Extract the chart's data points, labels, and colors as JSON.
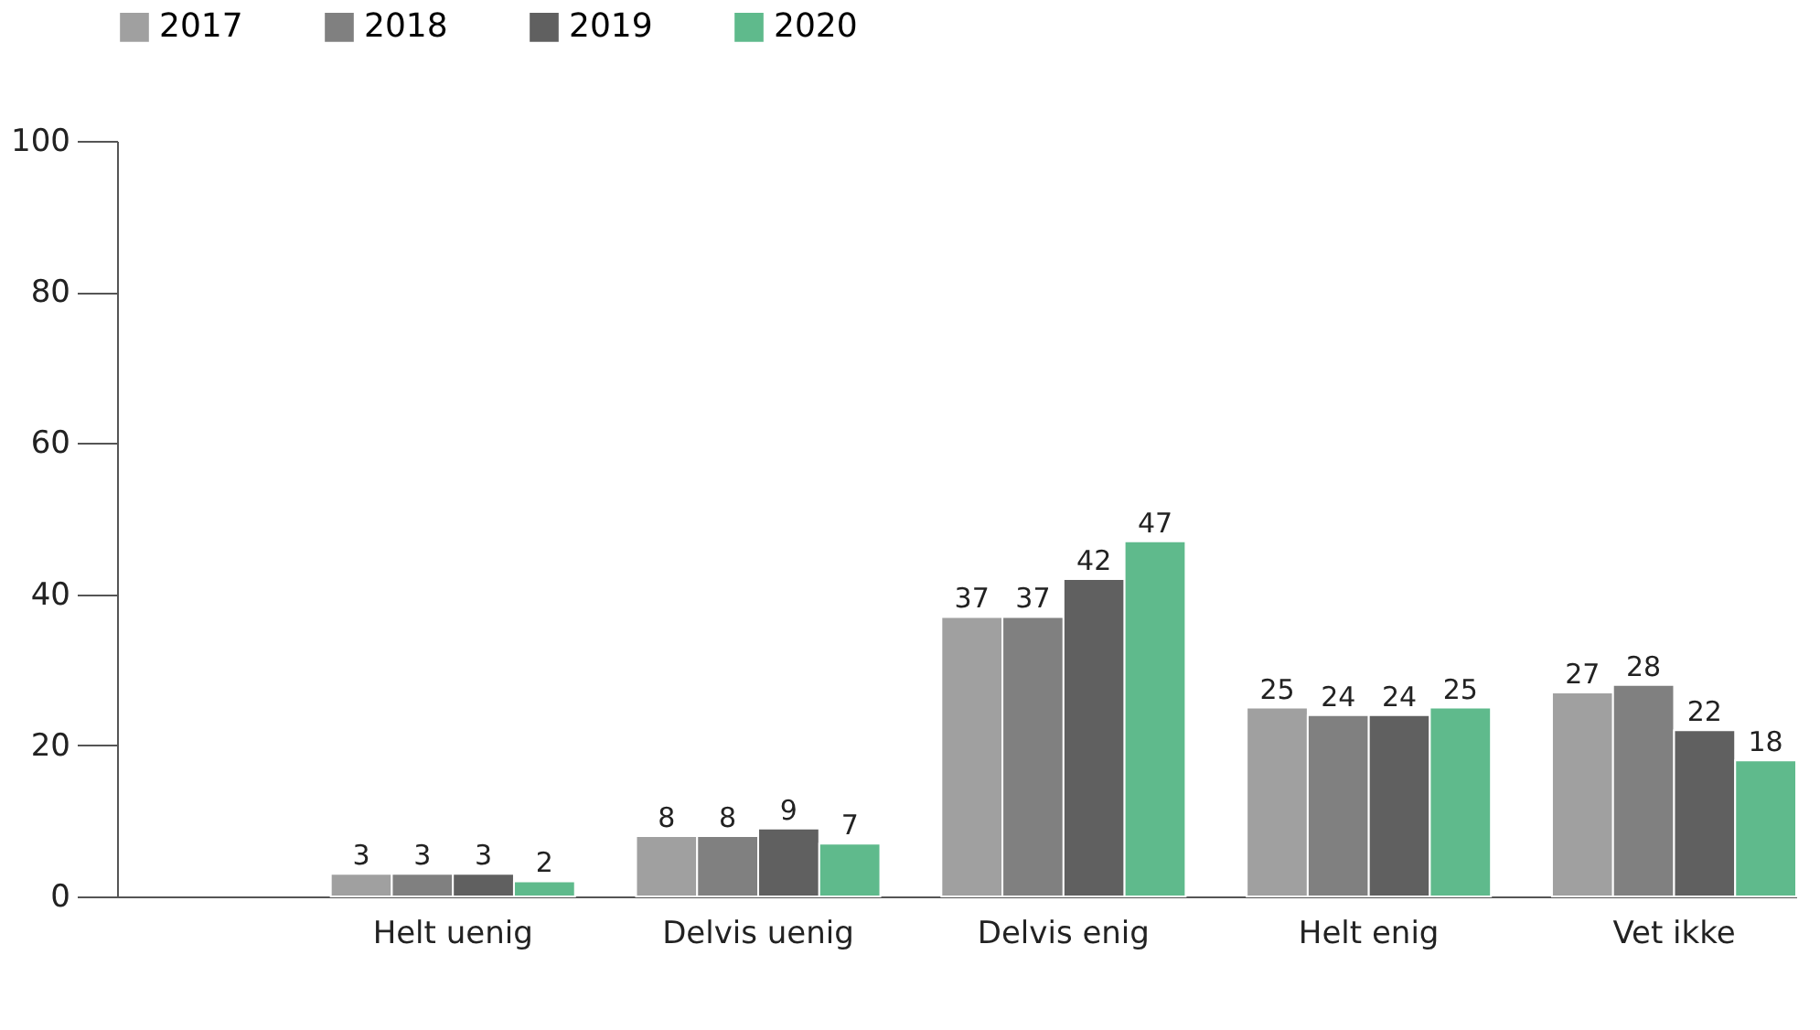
{
  "chart_data": {
    "type": "bar",
    "categories": [
      "Helt uenig",
      "Delvis uenig",
      "Delvis enig",
      "Helt enig",
      "Vet ikke"
    ],
    "series": [
      {
        "name": "2017",
        "color": "#a0a0a0",
        "values": [
          3,
          8,
          37,
          25,
          27
        ]
      },
      {
        "name": "2018",
        "color": "#808080",
        "values": [
          3,
          8,
          37,
          24,
          28
        ]
      },
      {
        "name": "2019",
        "color": "#606060",
        "values": [
          3,
          9,
          42,
          24,
          22
        ]
      },
      {
        "name": "2020",
        "color": "#5fba8c",
        "values": [
          2,
          7,
          47,
          25,
          18
        ]
      }
    ],
    "ylim": [
      0,
      100
    ],
    "yticks": [
      0,
      20,
      40,
      60,
      80,
      100
    ],
    "grid": false,
    "legend": "top left",
    "data_labels": true
  }
}
